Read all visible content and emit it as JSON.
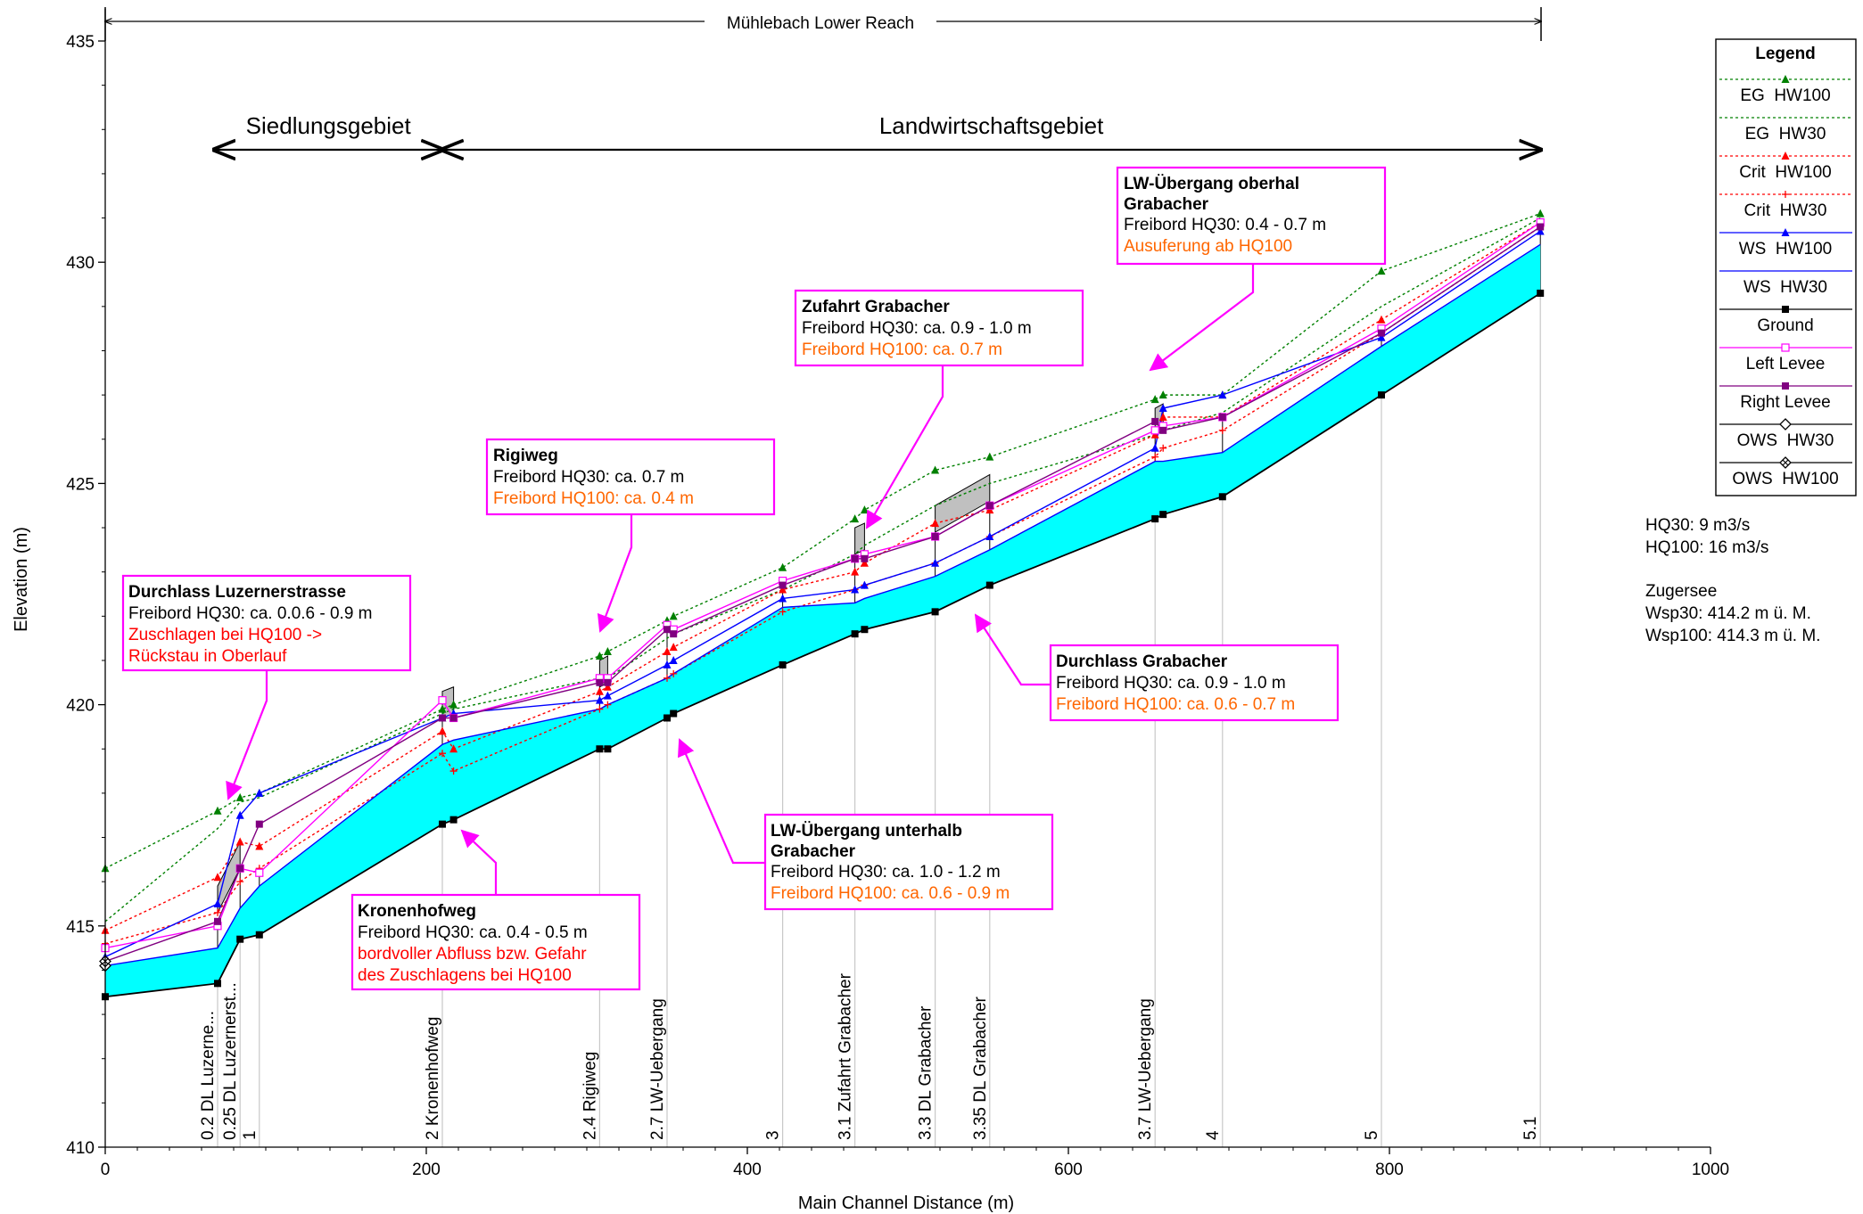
{
  "chart_data": {
    "type": "line",
    "title": "Mühlebach Lower Reach",
    "xlabel": "Main Channel Distance (m)",
    "ylabel": "Elevation (m)",
    "xlim": [
      0,
      1000
    ],
    "ylim": [
      410,
      435.5
    ],
    "xticks": [
      0,
      200,
      400,
      600,
      800,
      1000
    ],
    "yticks": [
      410,
      415,
      420,
      425,
      430,
      435
    ],
    "grid": false,
    "legend_position": "top-right",
    "legend_title": "Legend",
    "series": [
      {
        "name": "EG  HW100",
        "color": "#008000",
        "marker": "triangle",
        "dash": true,
        "x": [
          0,
          70,
          84,
          96,
          210,
          217,
          308,
          313,
          350,
          354,
          422,
          467,
          473,
          517,
          551,
          654,
          659,
          696,
          795,
          894
        ],
        "y": [
          416.3,
          417.6,
          417.9,
          418.0,
          419.9,
          420.0,
          421.1,
          421.2,
          421.9,
          422.0,
          423.1,
          424.2,
          424.4,
          425.3,
          425.6,
          426.9,
          427.0,
          427.0,
          429.8,
          431.1
        ]
      },
      {
        "name": "EG  HW30",
        "color": "#008000",
        "marker": "none",
        "dash": true,
        "x": [
          0,
          70,
          84,
          96,
          210,
          217,
          308,
          313,
          350,
          354,
          422,
          467,
          473,
          517,
          551,
          654,
          659,
          696,
          795,
          894
        ],
        "y": [
          415.1,
          417.2,
          417.8,
          417.9,
          419.8,
          419.9,
          420.6,
          420.6,
          421.5,
          421.6,
          422.6,
          423.4,
          423.6,
          424.5,
          425.0,
          426.1,
          426.2,
          426.6,
          429.0,
          431.0
        ]
      },
      {
        "name": "Crit  HW100",
        "color": "#ff0000",
        "marker": "triangle",
        "dash": true,
        "x": [
          0,
          70,
          84,
          96,
          210,
          217,
          308,
          313,
          350,
          354,
          422,
          467,
          473,
          517,
          551,
          654,
          659,
          696,
          795,
          894
        ],
        "y": [
          414.9,
          416.1,
          416.9,
          416.8,
          419.4,
          419.0,
          420.3,
          420.4,
          421.2,
          421.3,
          422.6,
          423.0,
          423.2,
          424.1,
          424.4,
          426.1,
          426.5,
          426.5,
          428.7,
          430.9
        ]
      },
      {
        "name": "Crit  HW30",
        "color": "#ff0000",
        "marker": "plus",
        "dash": true,
        "x": [
          0,
          70,
          84,
          96,
          210,
          217,
          308,
          313,
          350,
          354,
          422,
          467,
          473,
          517,
          551,
          654,
          659,
          696,
          795,
          894
        ],
        "y": [
          414.6,
          415.3,
          416.0,
          416.3,
          418.9,
          418.5,
          419.9,
          420.0,
          420.6,
          420.7,
          422.1,
          422.6,
          422.7,
          423.2,
          423.8,
          425.6,
          425.8,
          426.2,
          428.4,
          430.8
        ]
      },
      {
        "name": "WS  HW100",
        "color": "#0000ff",
        "marker": "triangle",
        "dash": false,
        "x": [
          0,
          70,
          84,
          96,
          210,
          217,
          308,
          313,
          350,
          354,
          422,
          467,
          473,
          517,
          551,
          654,
          659,
          696,
          795,
          894
        ],
        "y": [
          414.3,
          415.5,
          417.5,
          418.0,
          419.7,
          419.8,
          420.1,
          420.2,
          420.9,
          421.0,
          422.4,
          422.6,
          422.7,
          423.2,
          423.8,
          425.8,
          426.7,
          427.0,
          428.3,
          430.7
        ]
      },
      {
        "name": "WS  HW30",
        "color": "#0000ff",
        "marker": "none",
        "dash": false,
        "x": [
          0,
          70,
          84,
          96,
          210,
          217,
          308,
          313,
          350,
          354,
          422,
          467,
          473,
          517,
          551,
          654,
          659,
          696,
          795,
          894
        ],
        "y": [
          414.1,
          414.5,
          415.4,
          415.9,
          419.1,
          419.2,
          419.9,
          420.0,
          420.6,
          420.7,
          422.2,
          422.3,
          422.4,
          422.9,
          423.5,
          425.5,
          425.5,
          425.7,
          428.1,
          430.4
        ]
      },
      {
        "name": "Ground",
        "color": "#000000",
        "marker": "square",
        "dash": false,
        "x": [
          0,
          70,
          84,
          96,
          210,
          217,
          308,
          313,
          350,
          354,
          422,
          467,
          473,
          517,
          551,
          654,
          659,
          696,
          795,
          894
        ],
        "y": [
          413.4,
          413.7,
          414.7,
          414.8,
          417.3,
          417.4,
          419.0,
          419.0,
          419.7,
          419.8,
          420.9,
          421.6,
          421.7,
          422.1,
          422.7,
          424.2,
          424.3,
          424.7,
          427.0,
          429.3
        ]
      },
      {
        "name": "Left Levee",
        "color": "#ff00ff",
        "marker": "square-open",
        "dash": false,
        "x": [
          0,
          70,
          84,
          96,
          210,
          217,
          308,
          313,
          350,
          354,
          422,
          467,
          473,
          517,
          551,
          654,
          659,
          696,
          795,
          894
        ],
        "y": [
          414.5,
          415.0,
          416.3,
          416.2,
          420.1,
          419.7,
          420.6,
          420.6,
          421.8,
          421.7,
          422.8,
          423.3,
          423.4,
          423.8,
          424.5,
          426.2,
          426.3,
          426.5,
          428.5,
          430.9
        ]
      },
      {
        "name": "Right Levee",
        "color": "#800080",
        "marker": "square",
        "dash": false,
        "x": [
          0,
          70,
          84,
          96,
          210,
          217,
          308,
          313,
          350,
          354,
          422,
          467,
          473,
          517,
          551,
          654,
          659,
          696,
          795,
          894
        ],
        "y": [
          414.2,
          415.1,
          416.3,
          417.3,
          419.7,
          419.7,
          420.5,
          420.5,
          421.7,
          421.6,
          422.7,
          423.3,
          423.3,
          423.8,
          424.5,
          426.4,
          426.2,
          426.5,
          428.4,
          430.8
        ]
      },
      {
        "name": "OWS  HW30",
        "color": "#000000",
        "marker": "diamond-open",
        "dash": false,
        "x": [
          0
        ],
        "y": [
          414.1
        ]
      },
      {
        "name": "OWS  HW100",
        "color": "#000000",
        "marker": "diamond-cross",
        "dash": false,
        "x": [
          0
        ],
        "y": [
          414.2
        ]
      }
    ],
    "cross_sections": [
      {
        "x": 70,
        "label": "0.2 DL Luzerne..."
      },
      {
        "x": 84,
        "label": "0.25 DL Luzernerst..."
      },
      {
        "x": 96,
        "label": "1"
      },
      {
        "x": 210,
        "label": "2 Kronenhofweg"
      },
      {
        "x": 308,
        "label": "2.4 Rigiweg"
      },
      {
        "x": 350,
        "label": "2.7 LW-Uebergang"
      },
      {
        "x": 422,
        "label": "3"
      },
      {
        "x": 467,
        "label": "3.1 Zufahrt Grabacher"
      },
      {
        "x": 517,
        "label": "3.3 DL Grabacher"
      },
      {
        "x": 551,
        "label": "3.35 DL Grabacher"
      },
      {
        "x": 654,
        "label": "3.7 LW-Uebergang"
      },
      {
        "x": 696,
        "label": "4"
      },
      {
        "x": 795,
        "label": "5"
      },
      {
        "x": 894,
        "label": "5.1"
      }
    ],
    "ranges": [
      {
        "label": "Siedlungsgebiet",
        "x0": 68,
        "x1": 210
      },
      {
        "label": "Landwirtschaftsgebiet",
        "x0": 210,
        "x1": 894
      }
    ],
    "annotations": [
      {
        "key": "durchlass_luzerner",
        "title": "Durchlass Luzernerstrasse",
        "lines": [
          {
            "text": "Freibord HQ30: ca. 0.0.6 - 0.9 m",
            "color": "#000000"
          },
          {
            "text": "Zuschlagen bei HQ100 ->",
            "color": "#ff0000"
          },
          {
            "text": "Rückstau in Oberlauf",
            "color": "#ff0000"
          }
        ]
      },
      {
        "key": "kronenhofweg",
        "title": "Kronenhofweg",
        "lines": [
          {
            "text": "Freibord HQ30: ca. 0.4 - 0.5 m",
            "color": "#000000"
          },
          {
            "text": "bordvoller Abfluss bzw. Gefahr",
            "color": "#ff0000"
          },
          {
            "text": "des Zuschlagens bei HQ100",
            "color": "#ff0000"
          }
        ]
      },
      {
        "key": "rigiweg",
        "title": "Rigiweg",
        "lines": [
          {
            "text": "Freibord HQ30: ca. 0.7 m",
            "color": "#000000"
          },
          {
            "text": "Freibord HQ100: ca. 0.4 m",
            "color": "#ff6600"
          }
        ]
      },
      {
        "key": "zufahrt",
        "title": "Zufahrt Grabacher",
        "lines": [
          {
            "text": "Freibord HQ30: ca. 0.9 - 1.0 m",
            "color": "#000000"
          },
          {
            "text": "Freibord HQ100: ca. 0.7 m",
            "color": "#ff6600"
          }
        ]
      },
      {
        "key": "lw_oberhal",
        "title": "LW-Übergang oberhal",
        "title2": "Grabacher",
        "lines": [
          {
            "text": "Freibord HQ30: 0.4 - 0.7 m",
            "color": "#000000"
          },
          {
            "text": "Ausuferung ab HQ100",
            "color": "#ff6600"
          }
        ]
      },
      {
        "key": "durchlass_grabacher",
        "title": "Durchlass Grabacher",
        "lines": [
          {
            "text": "Freibord HQ30: ca. 0.9 - 1.0 m",
            "color": "#000000"
          },
          {
            "text": "Freibord HQ100: ca. 0.6 - 0.7 m",
            "color": "#ff6600"
          }
        ]
      },
      {
        "key": "lw_unterhalb",
        "title": "LW-Übergang unterhalb",
        "title2": "Grabacher",
        "lines": [
          {
            "text": "Freibord HQ30: ca. 1.0 - 1.2 m",
            "color": "#000000"
          },
          {
            "text": "Freibord HQ100: ca. 0.6 - 0.9 m",
            "color": "#ff6600"
          }
        ]
      }
    ],
    "side_notes": [
      "HQ30: 9 m3/s",
      "HQ100: 16 m3/s",
      "",
      "Zugersee",
      "Wsp30: 414.2 m ü. M.",
      "Wsp100: 414.3 m ü. M."
    ]
  }
}
